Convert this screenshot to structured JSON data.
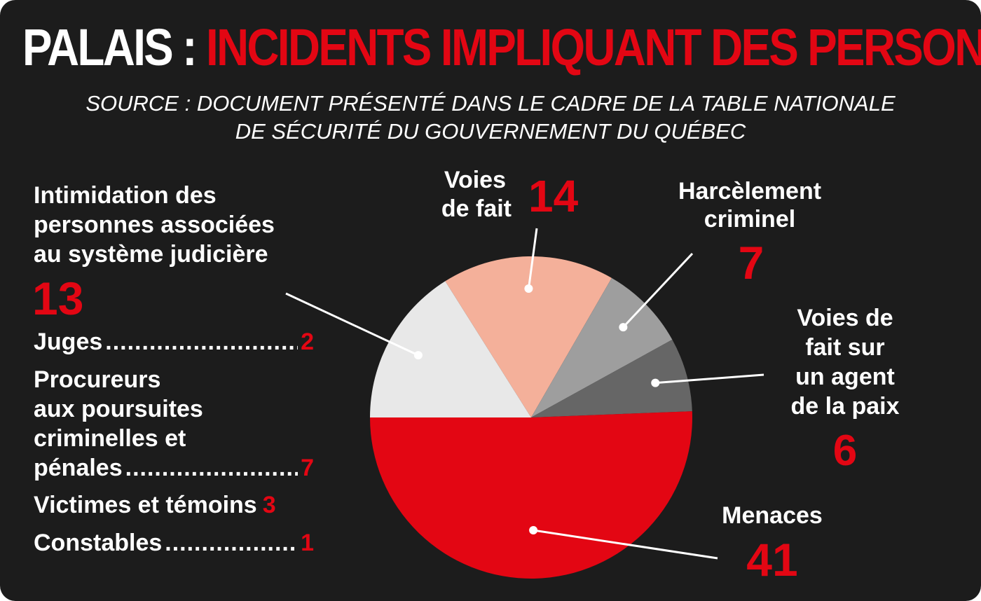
{
  "title": {
    "part1": "PALAIS :",
    "part2": "INCIDENTS IMPLIQUANT DES PERSONNES"
  },
  "source": {
    "line1": "SOURCE : DOCUMENT PRÉSENTÉ DANS LE CADRE DE LA TABLE NATIONALE",
    "line2": "DE SÉCURITÉ DU GOUVERNEMENT DU QUÉBEC"
  },
  "colors": {
    "background": "#1c1c1c",
    "accent_red": "#e30613",
    "text": "#ffffff"
  },
  "intimidation_breakdown": [
    {
      "label": "Juges",
      "value": 2
    },
    {
      "label": "Procureurs aux poursuites criminelles et pénales",
      "label_lines": [
        "Procureurs",
        "aux poursuites",
        "criminelles et",
        "pénales"
      ],
      "value": 7
    },
    {
      "label": "Victimes et témoins",
      "value": 3
    },
    {
      "label": "Constables",
      "value": 1
    }
  ],
  "chart_data": {
    "type": "pie",
    "slices": [
      {
        "label": "Voies de fait",
        "label_lines": [
          "Voies",
          "de fait"
        ],
        "value": 14,
        "color": "#f4b09a"
      },
      {
        "label": "Harcèlement criminel",
        "label_lines": [
          "Harcèlement",
          "criminel"
        ],
        "value": 7,
        "color": "#9e9e9e"
      },
      {
        "label": "Voies de fait sur un agent de la paix",
        "label_lines": [
          "Voies de",
          "fait sur",
          "un agent",
          "de la paix"
        ],
        "value": 6,
        "color": "#666666"
      },
      {
        "label": "Menaces",
        "label_lines": [
          "Menaces"
        ],
        "value": 41,
        "color": "#e30613"
      },
      {
        "label": "Intimidation des personnes associées au système judicière",
        "label_lines": [
          "Intimidation des",
          "personnes associées",
          "au système judicière"
        ],
        "value": 13,
        "color": "#e8e8e8"
      }
    ]
  }
}
